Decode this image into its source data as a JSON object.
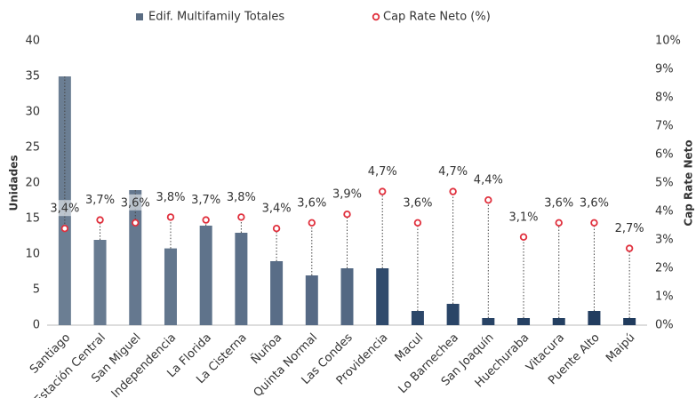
{
  "chart_data": {
    "type": "bar_line",
    "categories": [
      "Santiago",
      "Estación Central",
      "San Miguel",
      "Independencia",
      "La Florida",
      "La Cisterna",
      "Ñuñoa",
      "Quinta Normal",
      "Las Condes",
      "Providencia",
      "Macul",
      "Lo Barnechea",
      "San Joaquín",
      "Huechuraba",
      "Vitacura",
      "Puente Alto",
      "Maipú"
    ],
    "y_label": "Unidades",
    "y2_label": "Cap Rate Neto",
    "ylim": [
      0,
      40
    ],
    "yticks": [
      0,
      5,
      10,
      15,
      20,
      25,
      30,
      35,
      40
    ],
    "y2lim": [
      0,
      10
    ],
    "y2ticks": [
      {
        "value": 0,
        "label": "0%"
      },
      {
        "value": 1,
        "label": "1%"
      },
      {
        "value": 2,
        "label": "2%"
      },
      {
        "value": 3,
        "label": "3%"
      },
      {
        "value": 4,
        "label": "4%"
      },
      {
        "value": 5,
        "label": "5%"
      },
      {
        "value": 6,
        "label": "6%"
      },
      {
        "value": 7,
        "label": "7%"
      },
      {
        "value": 8,
        "label": "8%"
      },
      {
        "value": 9,
        "label": "9%"
      },
      {
        "value": 10,
        "label": "10%"
      }
    ],
    "grid": false,
    "legend": "top",
    "series": [
      {
        "name": "Edif. Multifamily Totales",
        "type": "bar",
        "color": "#5a6c82",
        "point_colors": [
          "#6b7e93",
          "#687b91",
          "#65788f",
          "#62768d",
          "#5f738b",
          "#5c7089",
          "#596d87",
          "#566a85",
          "#536883",
          "#2f4a6c",
          "#2c4769",
          "#2a4567",
          "#284365",
          "#264163",
          "#243f61",
          "#223d5f",
          "#203b5d"
        ],
        "values": [
          35,
          12,
          19,
          10.8,
          14,
          13,
          9,
          7,
          8,
          8,
          2,
          3,
          1,
          1,
          1,
          2,
          1
        ]
      },
      {
        "name": "Cap Rate Neto (%)",
        "type": "scatter",
        "axis": "y2",
        "color": "#e0303d",
        "values": [
          3.4,
          3.7,
          3.6,
          3.8,
          3.7,
          3.8,
          3.4,
          3.6,
          3.9,
          4.7,
          3.6,
          4.7,
          4.4,
          3.1,
          3.6,
          3.6,
          2.7
        ],
        "value_labels": [
          "3,4%",
          "3,7%",
          "3,6%",
          "3,8%",
          "3,7%",
          "3,8%",
          "3,4%",
          "3,6%",
          "3,9%",
          "4,7%",
          "3,6%",
          "4,7%",
          "4,4%",
          "3,1%",
          "3,6%",
          "3,6%",
          "2,7%"
        ]
      }
    ]
  }
}
